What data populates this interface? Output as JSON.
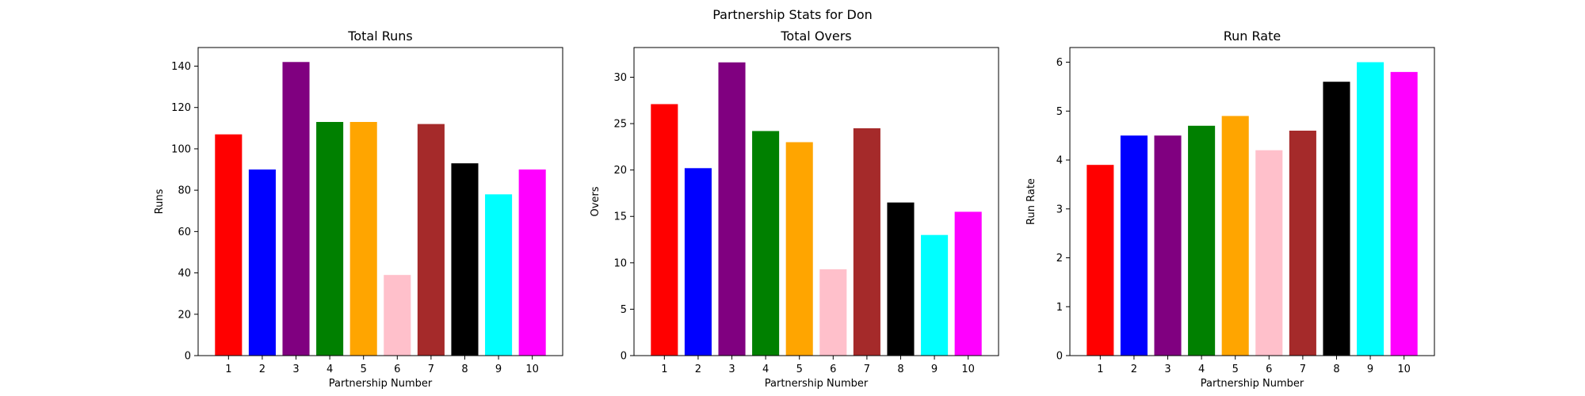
{
  "figure": {
    "suptitle": "Partnership Stats for Don"
  },
  "chart_data": [
    {
      "type": "bar",
      "title": "Total Runs",
      "xlabel": "Partnership Number",
      "ylabel": "Runs",
      "categories": [
        "1",
        "2",
        "3",
        "4",
        "5",
        "6",
        "7",
        "8",
        "9",
        "10"
      ],
      "values": [
        107,
        90,
        142,
        113,
        113,
        39,
        112,
        93,
        78,
        90
      ],
      "colors": [
        "#ff0000",
        "#0000ff",
        "#800080",
        "#008000",
        "#ffa500",
        "#ffc0cb",
        "#a52a2a",
        "#000000",
        "#00ffff",
        "#ff00ff"
      ],
      "ylim": [
        0,
        149
      ],
      "yticks": [
        0,
        20,
        40,
        60,
        80,
        100,
        120,
        140
      ],
      "grid": false,
      "legend": "none"
    },
    {
      "type": "bar",
      "title": "Total Overs",
      "xlabel": "Partnership Number",
      "ylabel": "Overs",
      "categories": [
        "1",
        "2",
        "3",
        "4",
        "5",
        "6",
        "7",
        "8",
        "9",
        "10"
      ],
      "values": [
        27.1,
        20.2,
        31.6,
        24.2,
        23.0,
        9.3,
        24.5,
        16.5,
        13.0,
        15.5
      ],
      "colors": [
        "#ff0000",
        "#0000ff",
        "#800080",
        "#008000",
        "#ffa500",
        "#ffc0cb",
        "#a52a2a",
        "#000000",
        "#00ffff",
        "#ff00ff"
      ],
      "ylim": [
        0,
        33.2
      ],
      "yticks": [
        0,
        5,
        10,
        15,
        20,
        25,
        30
      ],
      "grid": false,
      "legend": "none"
    },
    {
      "type": "bar",
      "title": "Run Rate",
      "xlabel": "Partnership Number",
      "ylabel": "Run Rate",
      "categories": [
        "1",
        "2",
        "3",
        "4",
        "5",
        "6",
        "7",
        "8",
        "9",
        "10"
      ],
      "values": [
        3.9,
        4.5,
        4.5,
        4.7,
        4.9,
        4.2,
        4.6,
        5.6,
        6.0,
        5.8
      ],
      "colors": [
        "#ff0000",
        "#0000ff",
        "#800080",
        "#008000",
        "#ffa500",
        "#ffc0cb",
        "#a52a2a",
        "#000000",
        "#00ffff",
        "#ff00ff"
      ],
      "ylim": [
        0,
        6.3
      ],
      "yticks": [
        0,
        1,
        2,
        3,
        4,
        5,
        6
      ],
      "grid": false,
      "legend": "none"
    }
  ]
}
